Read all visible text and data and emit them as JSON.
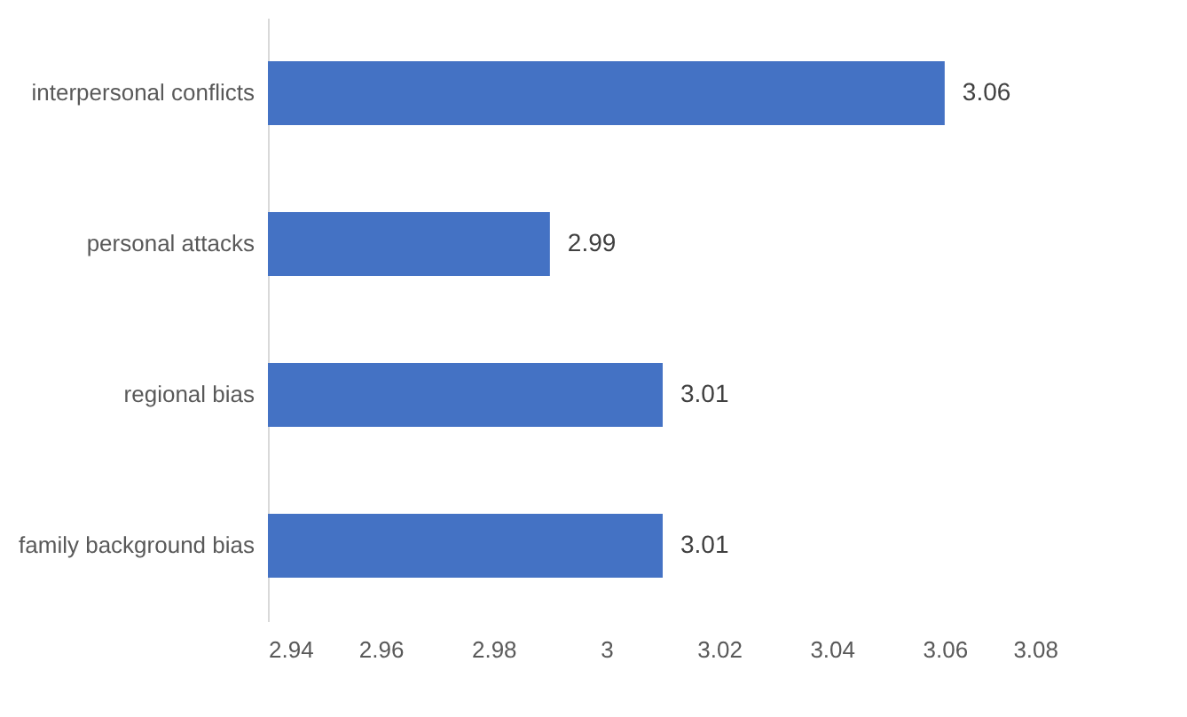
{
  "chart_data": {
    "type": "bar",
    "orientation": "horizontal",
    "categories": [
      "interpersonal conflicts",
      "personal attacks",
      "regional bias",
      "family background bias"
    ],
    "values": [
      3.06,
      2.99,
      3.01,
      3.01
    ],
    "color": "#4472c4",
    "xlim": [
      2.94,
      3.08
    ],
    "xticks": [
      2.94,
      2.96,
      2.98,
      3,
      3.02,
      3.04,
      3.06,
      3.08
    ],
    "data_labels": true
  }
}
